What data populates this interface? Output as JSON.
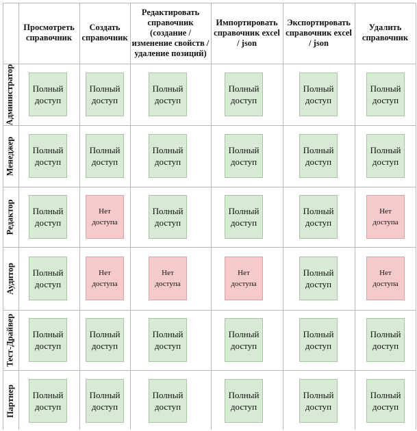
{
  "columns": [
    "Просмотреть справочник",
    "Создать справочник",
    "Редактировать справочник (создание / изменение свойств / удаление позиций)",
    "Импортировать справочник excel / json",
    "Экспортировать справочник excel / json",
    "Удалить справочник"
  ],
  "access_labels": {
    "full": "Полный доступ",
    "none": "Нет доступа"
  },
  "roles": [
    {
      "name": "Администратор",
      "access": [
        "full",
        "full",
        "full",
        "full",
        "full",
        "full"
      ]
    },
    {
      "name": "Менеджер",
      "access": [
        "full",
        "full",
        "full",
        "full",
        "full",
        "full"
      ]
    },
    {
      "name": "Редактор",
      "access": [
        "full",
        "none",
        "full",
        "full",
        "full",
        "none"
      ]
    },
    {
      "name": "Аудитор",
      "access": [
        "full",
        "none",
        "none",
        "none",
        "full",
        "none"
      ]
    },
    {
      "name": "Тест-Драйвер",
      "access": [
        "full",
        "full",
        "full",
        "full",
        "full",
        "full"
      ]
    },
    {
      "name": "Партнер",
      "access": [
        "full",
        "full",
        "full",
        "full",
        "full",
        "full"
      ]
    }
  ],
  "colors": {
    "full_fill": "#d7ead3",
    "none_fill": "#f6caca",
    "grid_line": "#b9b9b9"
  }
}
